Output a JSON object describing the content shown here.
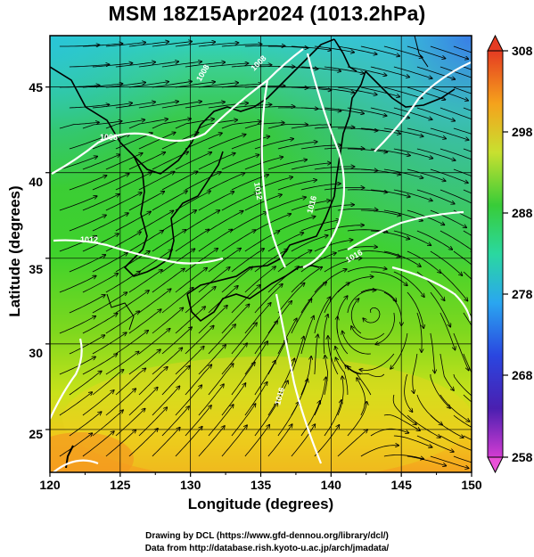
{
  "title": "MSM 18Z15Apr2024 (1013.2hPa)",
  "xlabel": "Longitude (degrees)",
  "ylabel": "Latitude  (degrees)",
  "credit_line1": "Drawing by DCL (https://www.gfd-dennou.org/library/dcl/)",
  "credit_line2": "Data from http://database.rish.kyoto-u.ac.jp/arch/jmadata/",
  "chart_data": {
    "type": "heatmap",
    "variable": "temperature (K) with surface wind streamlines and pressure isobars",
    "xlim": [
      120,
      150
    ],
    "ylim": [
      22.5,
      48
    ],
    "x_ticks": [
      "120",
      "125",
      "130",
      "135",
      "140",
      "145",
      "150"
    ],
    "y_ticks": [
      "25",
      "30",
      "35",
      "40",
      "45"
    ],
    "colorbar": {
      "min": 258,
      "max": 308,
      "ticks": [
        "308",
        "298",
        "288",
        "278",
        "268",
        "258"
      ],
      "extend_triangles": true
    },
    "grid": true,
    "isobar_labels": [
      "1008",
      "1008",
      "1008",
      "1012",
      "1012",
      "1016",
      "1016",
      "1016"
    ],
    "temperature_regions": [
      {
        "region": "south (22.5-27N)",
        "approx_K": 294
      },
      {
        "region": "central (30-38N)",
        "approx_K": 288
      },
      {
        "region": "north-east (44-48N)",
        "approx_K": 279
      }
    ]
  }
}
